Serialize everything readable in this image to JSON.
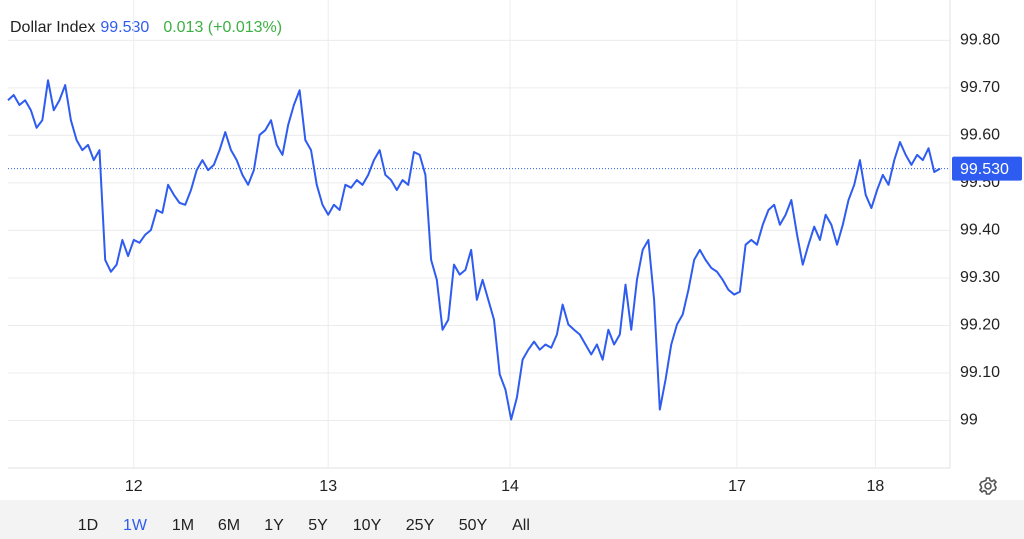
{
  "chart_data": {
    "type": "line",
    "title": "Dollar Index",
    "change": "0.013 (+0.013%)",
    "color": "#2f5cf0",
    "change_color": "#3cb043",
    "grid": true,
    "reference_line": {
      "value": 99.53,
      "label": "99.530"
    },
    "ranges": [
      "1D",
      "1W",
      "1M",
      "6M",
      "1Y",
      "5Y",
      "10Y",
      "25Y",
      "50Y",
      "All"
    ],
    "selected_range": "1W",
    "xlim": [
      0,
      163
    ],
    "xticks": [
      {
        "value": 22,
        "label": "12"
      },
      {
        "value": 56,
        "label": "13"
      },
      {
        "value": 87.8,
        "label": "14"
      },
      {
        "value": 127.5,
        "label": "17"
      },
      {
        "value": 151.7,
        "label": "18"
      }
    ],
    "ylim": [
      98.9,
      99.885
    ],
    "yticks": [
      99,
      {
        "value": 99.1,
        "label": "99.10"
      },
      {
        "value": 99.2,
        "label": "99.20"
      },
      {
        "value": 99.3,
        "label": "99.30"
      },
      {
        "value": 99.4,
        "label": "99.40"
      },
      {
        "value": 99.5,
        "label": "99.50"
      },
      {
        "value": 99.6,
        "label": "99.60"
      },
      {
        "value": 99.7,
        "label": "99.70"
      },
      {
        "value": 99.8,
        "label": "99.80"
      }
    ],
    "values": [
      99.674,
      99.685,
      99.664,
      99.674,
      99.653,
      99.616,
      99.632,
      99.716,
      99.653,
      99.674,
      99.706,
      99.632,
      99.59,
      99.569,
      99.58,
      99.548,
      99.569,
      99.338,
      99.313,
      99.328,
      99.38,
      99.346,
      99.38,
      99.374,
      99.391,
      99.401,
      99.443,
      99.437,
      99.496,
      99.475,
      99.458,
      99.454,
      99.485,
      99.527,
      99.548,
      99.527,
      99.538,
      99.569,
      99.607,
      99.569,
      99.548,
      99.517,
      99.496,
      99.527,
      99.601,
      99.611,
      99.632,
      99.58,
      99.559,
      99.622,
      99.664,
      99.695,
      99.59,
      99.569,
      99.496,
      99.454,
      99.433,
      99.454,
      99.443,
      99.496,
      99.49,
      99.506,
      99.496,
      99.517,
      99.548,
      99.569,
      99.517,
      99.506,
      99.485,
      99.506,
      99.496,
      99.565,
      99.559,
      99.517,
      99.338,
      99.296,
      99.191,
      99.212,
      99.328,
      99.307,
      99.317,
      99.359,
      99.254,
      99.296,
      99.254,
      99.212,
      99.097,
      99.065,
      99.002,
      99.048,
      99.128,
      99.149,
      99.166,
      99.149,
      99.16,
      99.153,
      99.181,
      99.244,
      99.202,
      99.191,
      99.181,
      99.16,
      99.139,
      99.16,
      99.128,
      99.191,
      99.16,
      99.181,
      99.286,
      99.191,
      99.296,
      99.359,
      99.38,
      99.254,
      99.023,
      99.086,
      99.16,
      99.202,
      99.223,
      99.275,
      99.338,
      99.359,
      99.338,
      99.321,
      99.313,
      99.296,
      99.275,
      99.265,
      99.271,
      99.37,
      99.38,
      99.37,
      99.412,
      99.443,
      99.454,
      99.412,
      99.433,
      99.464,
      99.391,
      99.328,
      99.37,
      99.408,
      99.38,
      99.433,
      99.412,
      99.37,
      99.412,
      99.464,
      99.496,
      99.548,
      99.475,
      99.447,
      99.485,
      99.517,
      99.496,
      99.548,
      99.586,
      99.559,
      99.538,
      99.559,
      99.548,
      99.573,
      99.523,
      99.53
    ]
  }
}
